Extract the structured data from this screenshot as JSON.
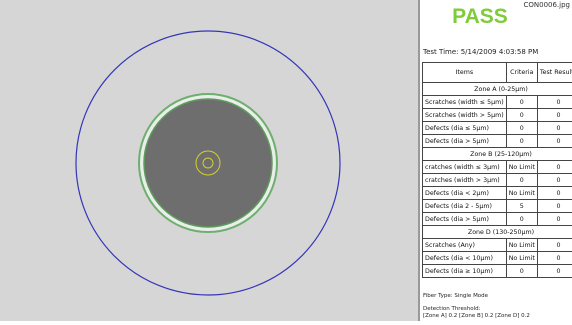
{
  "filename": "CON0006.jpg",
  "status": "PASS",
  "test_time": "Test Time: 5/14/2009 4:03:58 PM",
  "table": {
    "header": [
      "Items",
      "Criteria",
      "Test Results"
    ],
    "sections": [
      {
        "title": "Zone A (0-25µm)",
        "rows": [
          [
            "Scratches (width ≤ 5µm)",
            "0",
            "0"
          ],
          [
            "Scratches (width > 5µm)",
            "0",
            "0"
          ],
          [
            "Defects (dia ≤ 5µm)",
            "0",
            "0"
          ],
          [
            "Defects (dia > 5µm)",
            "0",
            "0"
          ]
        ]
      },
      {
        "title": "Zone B (25-120µm)",
        "rows": [
          [
            "cratches (width ≤ 3µm)",
            "No Limit",
            "0"
          ],
          [
            "cratches (width > 3µm)",
            "0",
            "0"
          ],
          [
            "Defects (dia < 2µm)",
            "No Limit",
            "0"
          ],
          [
            "Defects (dia 2 - 5µm)",
            "5",
            "0"
          ],
          [
            "Defects (dia > 5µm)",
            "0",
            "0"
          ]
        ]
      },
      {
        "title": "Zone D (130-250µm)",
        "rows": [
          [
            "Scratches (Any)",
            "No Limit",
            "0"
          ],
          [
            "Defects (dia < 10µm)",
            "No Limit",
            "0"
          ],
          [
            "Defects (dia ≥ 10µm)",
            "0",
            "0"
          ]
        ]
      }
    ]
  },
  "footer": {
    "fiber_type": "Fiber Type: Single Mode",
    "threshold_title": "Detection Threshold:",
    "threshold": "[Zone A] 0.2 [Zone B] 0.2 [Zone D] 0.2"
  }
}
